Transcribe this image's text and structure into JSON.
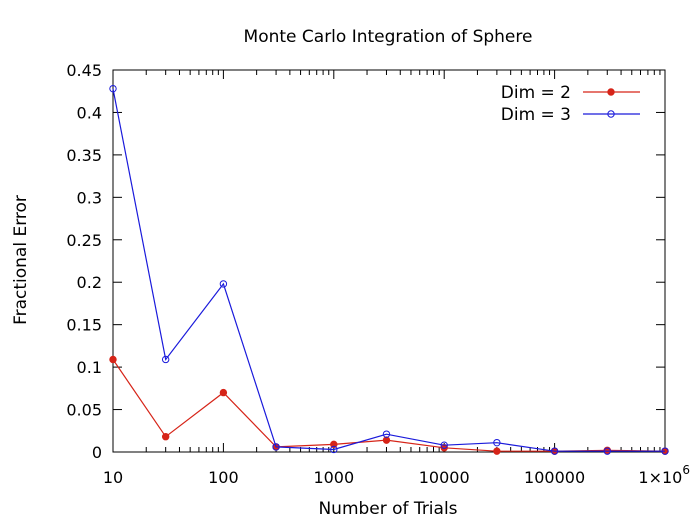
{
  "chart_data": {
    "type": "line",
    "title": "Monte Carlo Integration of Sphere",
    "xlabel": "Number of Trials",
    "ylabel": "Fractional Error",
    "xscale": "log",
    "xlim": [
      10,
      1000000
    ],
    "ylim": [
      0,
      0.45
    ],
    "grid": false,
    "legend_position": "top-right",
    "x_ticks": [
      {
        "value": 10,
        "label": "10"
      },
      {
        "value": 100,
        "label": "100"
      },
      {
        "value": 1000,
        "label": "1000"
      },
      {
        "value": 10000,
        "label": "10000"
      },
      {
        "value": 100000,
        "label": "100000"
      },
      {
        "value": 1000000,
        "label": "1×10",
        "superscript": "6"
      }
    ],
    "y_ticks": [
      {
        "value": 0,
        "label": "0"
      },
      {
        "value": 0.05,
        "label": "0.05"
      },
      {
        "value": 0.1,
        "label": "0.1"
      },
      {
        "value": 0.15,
        "label": "0.15"
      },
      {
        "value": 0.2,
        "label": "0.2"
      },
      {
        "value": 0.25,
        "label": "0.25"
      },
      {
        "value": 0.3,
        "label": "0.3"
      },
      {
        "value": 0.35,
        "label": "0.35"
      },
      {
        "value": 0.4,
        "label": "0.4"
      },
      {
        "value": 0.45,
        "label": "0.45"
      }
    ],
    "x": [
      10,
      30,
      100,
      300,
      1000,
      3000,
      10000,
      30000,
      100000,
      300000,
      1000000
    ],
    "series": [
      {
        "name": "Dim = 2",
        "color": "#d62418",
        "marker": "filled-circle",
        "values": [
          0.109,
          0.018,
          0.07,
          0.006,
          0.009,
          0.014,
          0.005,
          0.001,
          0.001,
          0.002,
          0.001
        ]
      },
      {
        "name": "Dim = 3",
        "color": "#1a1adb",
        "marker": "open-circle",
        "values": [
          0.428,
          0.109,
          0.198,
          0.006,
          0.003,
          0.021,
          0.008,
          0.011,
          0.001,
          0.001,
          0.001
        ]
      }
    ]
  }
}
